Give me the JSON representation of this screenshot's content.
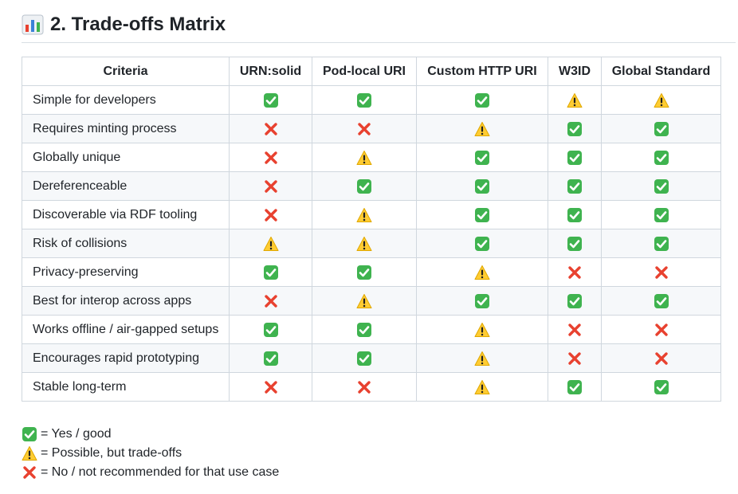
{
  "heading": {
    "icon": "bar-chart-icon",
    "title": "2. Trade-offs Matrix"
  },
  "table": {
    "columns": [
      "Criteria",
      "URN:solid",
      "Pod-local URI",
      "Custom HTTP URI",
      "W3ID",
      "Global Standard"
    ],
    "rows": [
      {
        "criterion": "Simple for developers",
        "marks": [
          "yes",
          "yes",
          "yes",
          "warn",
          "warn"
        ]
      },
      {
        "criterion": "Requires minting process",
        "marks": [
          "no",
          "no",
          "warn",
          "yes",
          "yes"
        ]
      },
      {
        "criterion": "Globally unique",
        "marks": [
          "no",
          "warn",
          "yes",
          "yes",
          "yes"
        ]
      },
      {
        "criterion": "Dereferenceable",
        "marks": [
          "no",
          "yes",
          "yes",
          "yes",
          "yes"
        ]
      },
      {
        "criterion": "Discoverable via RDF tooling",
        "marks": [
          "no",
          "warn",
          "yes",
          "yes",
          "yes"
        ]
      },
      {
        "criterion": "Risk of collisions",
        "marks": [
          "warn",
          "warn",
          "yes",
          "yes",
          "yes"
        ]
      },
      {
        "criterion": "Privacy-preserving",
        "marks": [
          "yes",
          "yes",
          "warn",
          "no",
          "no"
        ]
      },
      {
        "criterion": "Best for interop across apps",
        "marks": [
          "no",
          "warn",
          "yes",
          "yes",
          "yes"
        ]
      },
      {
        "criterion": "Works offline / air-gapped setups",
        "marks": [
          "yes",
          "yes",
          "warn",
          "no",
          "no"
        ]
      },
      {
        "criterion": "Encourages rapid prototyping",
        "marks": [
          "yes",
          "yes",
          "warn",
          "no",
          "no"
        ]
      },
      {
        "criterion": "Stable long-term",
        "marks": [
          "no",
          "no",
          "warn",
          "yes",
          "yes"
        ]
      }
    ]
  },
  "legend": [
    {
      "mark": "yes",
      "text": "= Yes / good"
    },
    {
      "mark": "warn",
      "text": "= Possible, but trade-offs"
    },
    {
      "mark": "no",
      "text": "= No / not recommended for that use case"
    }
  ],
  "icons": {
    "yes": "check-mark-icon",
    "warn": "warning-icon",
    "no": "cross-mark-icon"
  },
  "colors": {
    "yes": "#3fb34f",
    "warn": "#ffcc32",
    "no": "#e8412f",
    "border": "#d0d7de",
    "stripe": "#f6f8fa"
  }
}
